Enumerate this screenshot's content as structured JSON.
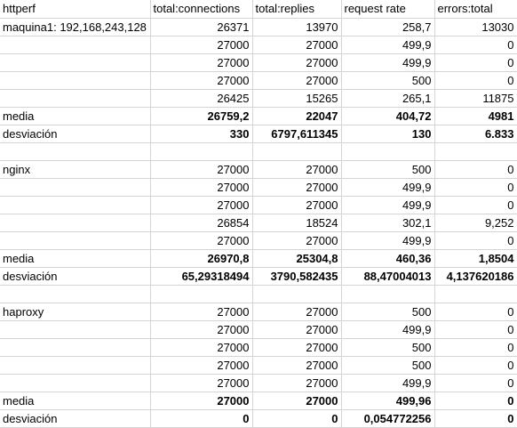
{
  "header": [
    "httperf",
    "total:connections",
    "total:replies",
    "request rate",
    "errors:total"
  ],
  "rows": [
    {
      "label": "maquina1: 192,168,243,128",
      "values": [
        "26371",
        "13970",
        "258,7",
        "13030"
      ],
      "bold": false
    },
    {
      "label": "",
      "values": [
        "27000",
        "27000",
        "499,9",
        "0"
      ],
      "bold": false
    },
    {
      "label": "",
      "values": [
        "27000",
        "27000",
        "499,9",
        "0"
      ],
      "bold": false
    },
    {
      "label": "",
      "values": [
        "27000",
        "27000",
        "500",
        "0"
      ],
      "bold": false
    },
    {
      "label": "",
      "values": [
        "26425",
        "15265",
        "265,1",
        "11875"
      ],
      "bold": false
    },
    {
      "label": "media",
      "values": [
        "26759,2",
        "22047",
        "404,72",
        "4981"
      ],
      "bold": true
    },
    {
      "label": "desviación",
      "values": [
        "330",
        "6797,611345",
        "130",
        "6.833"
      ],
      "bold": true
    },
    {
      "label": "",
      "values": [
        "",
        "",
        "",
        ""
      ],
      "bold": false
    },
    {
      "label": "nginx",
      "values": [
        "27000",
        "27000",
        "500",
        "0"
      ],
      "bold": false
    },
    {
      "label": "",
      "values": [
        "27000",
        "27000",
        "499,9",
        "0"
      ],
      "bold": false
    },
    {
      "label": "",
      "values": [
        "27000",
        "27000",
        "499,9",
        "0"
      ],
      "bold": false
    },
    {
      "label": "",
      "values": [
        "26854",
        "18524",
        "302,1",
        "9,252"
      ],
      "bold": false
    },
    {
      "label": "",
      "values": [
        "27000",
        "27000",
        "499,9",
        "0"
      ],
      "bold": false
    },
    {
      "label": "media",
      "values": [
        "26970,8",
        "25304,8",
        "460,36",
        "1,8504"
      ],
      "bold": true
    },
    {
      "label": "desviación",
      "values": [
        "65,29318494",
        "3790,582435",
        "88,47004013",
        "4,137620186"
      ],
      "bold": true
    },
    {
      "label": "",
      "values": [
        "",
        "",
        "",
        ""
      ],
      "bold": false
    },
    {
      "label": "haproxy",
      "values": [
        "27000",
        "27000",
        "500",
        "0"
      ],
      "bold": false
    },
    {
      "label": "",
      "values": [
        "27000",
        "27000",
        "499,9",
        "0"
      ],
      "bold": false
    },
    {
      "label": "",
      "values": [
        "27000",
        "27000",
        "500",
        "0"
      ],
      "bold": false
    },
    {
      "label": "",
      "values": [
        "27000",
        "27000",
        "500",
        "0"
      ],
      "bold": false
    },
    {
      "label": "",
      "values": [
        "27000",
        "27000",
        "499,9",
        "0"
      ],
      "bold": false
    },
    {
      "label": "media",
      "values": [
        "27000",
        "27000",
        "499,96",
        "0"
      ],
      "bold": true
    },
    {
      "label": "desviación",
      "values": [
        "0",
        "0",
        "0,054772256",
        "0"
      ],
      "bold": true
    }
  ]
}
